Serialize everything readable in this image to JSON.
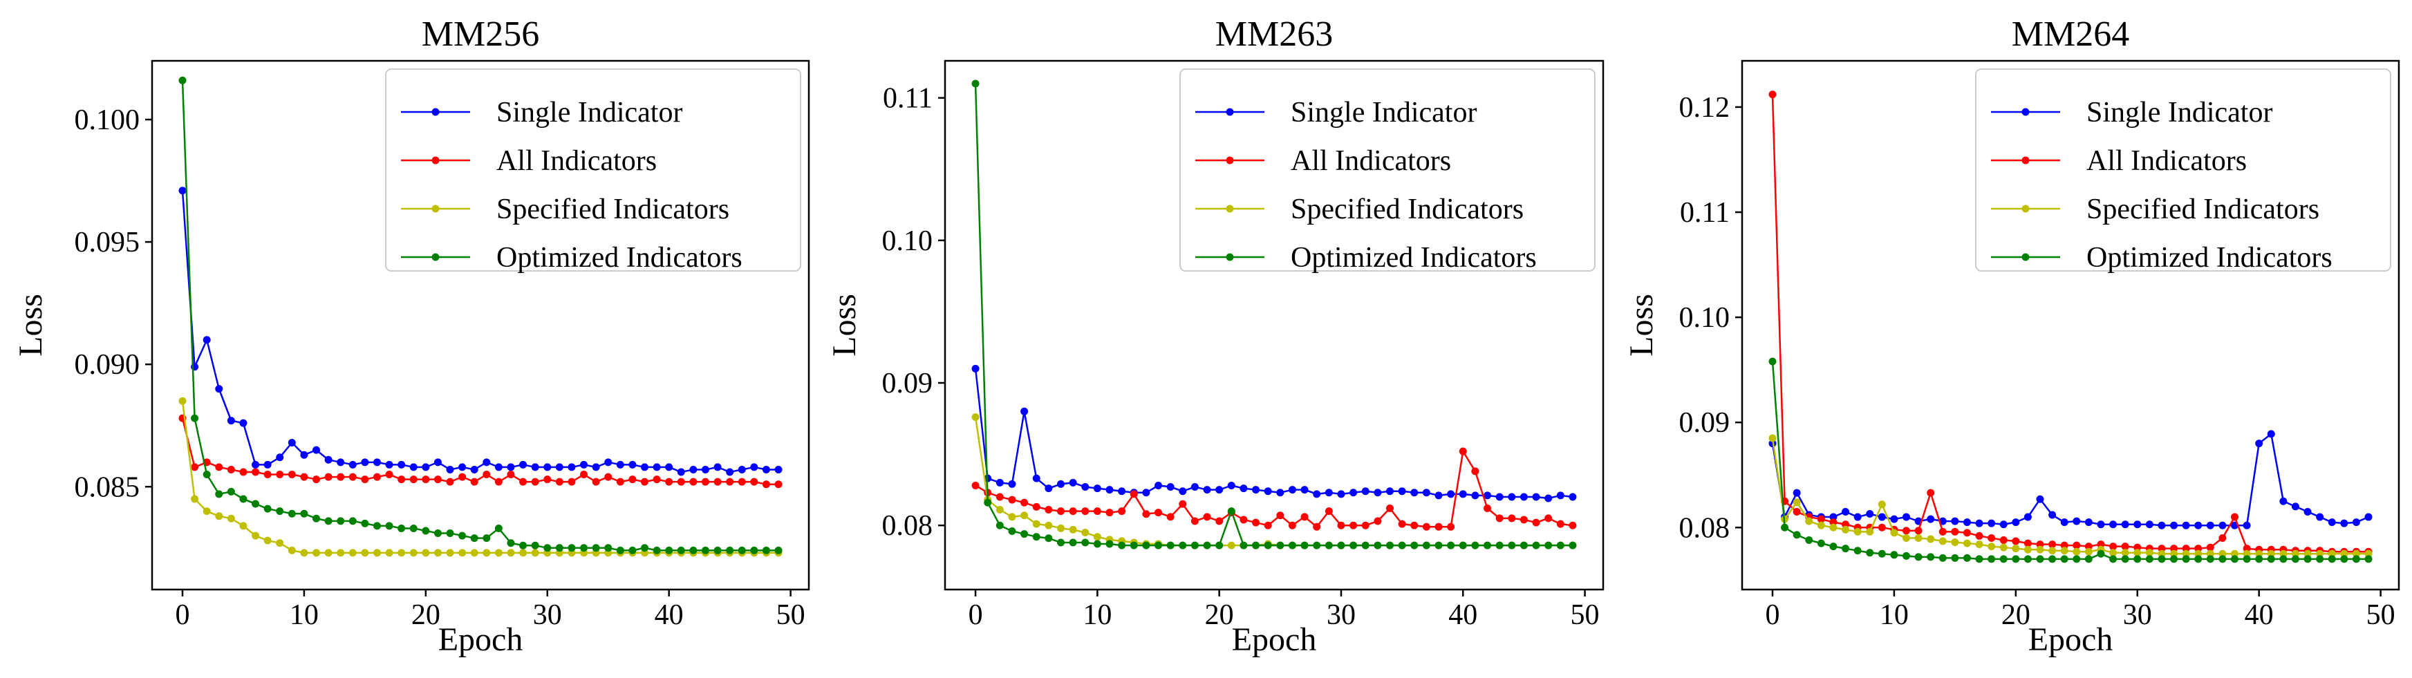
{
  "colors": {
    "single": "#0000ff",
    "all": "#ff0000",
    "specified": "#bfbf00",
    "optimized": "#008000"
  },
  "chart_data": [
    {
      "type": "line",
      "title": "MM256",
      "xlabel": "Epoch",
      "ylabel": "Loss",
      "xlim": [
        -2.5,
        51.5
      ],
      "ylim": [
        0.0808,
        0.1024
      ],
      "xticks": [
        0,
        10,
        20,
        30,
        40,
        50
      ],
      "yticks": [
        0.085,
        0.09,
        0.095,
        0.1
      ],
      "ytick_labels": [
        "0.085",
        "0.090",
        "0.095",
        "0.100"
      ],
      "legend": "top-right",
      "x": [
        0,
        1,
        2,
        3,
        4,
        5,
        6,
        7,
        8,
        9,
        10,
        11,
        12,
        13,
        14,
        15,
        16,
        17,
        18,
        19,
        20,
        21,
        22,
        23,
        24,
        25,
        26,
        27,
        28,
        29,
        30,
        31,
        32,
        33,
        34,
        35,
        36,
        37,
        38,
        39,
        40,
        41,
        42,
        43,
        44,
        45,
        46,
        47,
        48,
        49
      ],
      "series": [
        {
          "name": "Single Indicator",
          "color_key": "single",
          "values": [
            0.0971,
            0.0899,
            0.091,
            0.089,
            0.0877,
            0.0876,
            0.0859,
            0.0859,
            0.0862,
            0.0868,
            0.0863,
            0.0865,
            0.0861,
            0.086,
            0.0859,
            0.086,
            0.086,
            0.0859,
            0.0859,
            0.0858,
            0.0858,
            0.086,
            0.0857,
            0.0858,
            0.0857,
            0.086,
            0.0858,
            0.0858,
            0.0859,
            0.0858,
            0.0858,
            0.0858,
            0.0858,
            0.0859,
            0.0858,
            0.086,
            0.0859,
            0.0859,
            0.0858,
            0.0858,
            0.0858,
            0.0856,
            0.0857,
            0.0857,
            0.0858,
            0.0856,
            0.0857,
            0.0858,
            0.0857,
            0.0857
          ]
        },
        {
          "name": "All Indicators",
          "color_key": "all",
          "values": [
            0.0878,
            0.0858,
            0.086,
            0.0858,
            0.0857,
            0.0856,
            0.0856,
            0.0855,
            0.0855,
            0.0855,
            0.0854,
            0.0853,
            0.0854,
            0.0854,
            0.0854,
            0.0853,
            0.0854,
            0.0855,
            0.0853,
            0.0853,
            0.0853,
            0.0853,
            0.0852,
            0.0854,
            0.0852,
            0.0855,
            0.0852,
            0.0855,
            0.0852,
            0.0852,
            0.0853,
            0.0852,
            0.0852,
            0.0855,
            0.0852,
            0.0854,
            0.0852,
            0.0853,
            0.0852,
            0.0853,
            0.0852,
            0.0852,
            0.0852,
            0.0852,
            0.0852,
            0.0852,
            0.0852,
            0.0852,
            0.0851,
            0.0851
          ]
        },
        {
          "name": "Specified Indicators",
          "color_key": "specified",
          "values": [
            0.0885,
            0.0845,
            0.084,
            0.0838,
            0.0837,
            0.0834,
            0.083,
            0.0828,
            0.0827,
            0.0824,
            0.0823,
            0.0823,
            0.0823,
            0.0823,
            0.0823,
            0.0823,
            0.0823,
            0.0823,
            0.0823,
            0.0823,
            0.0823,
            0.0823,
            0.0823,
            0.0823,
            0.0823,
            0.0823,
            0.0823,
            0.0823,
            0.0823,
            0.0823,
            0.0823,
            0.0823,
            0.0823,
            0.0823,
            0.0823,
            0.0823,
            0.0823,
            0.0823,
            0.0823,
            0.0823,
            0.0823,
            0.0823,
            0.0823,
            0.0823,
            0.0823,
            0.0823,
            0.0823,
            0.0823,
            0.0823,
            0.0823
          ]
        },
        {
          "name": "Optimized Indicators",
          "color_key": "optimized",
          "values": [
            0.1016,
            0.0878,
            0.0855,
            0.0847,
            0.0848,
            0.0845,
            0.0843,
            0.0841,
            0.084,
            0.0839,
            0.0839,
            0.0837,
            0.0836,
            0.0836,
            0.0836,
            0.0835,
            0.0834,
            0.0834,
            0.0833,
            0.0833,
            0.0832,
            0.0831,
            0.0831,
            0.083,
            0.0829,
            0.0829,
            0.0833,
            0.0827,
            0.0826,
            0.0826,
            0.0825,
            0.0825,
            0.0825,
            0.0825,
            0.0825,
            0.0825,
            0.0824,
            0.0824,
            0.0825,
            0.0824,
            0.0824,
            0.0824,
            0.0824,
            0.0824,
            0.0824,
            0.0824,
            0.0824,
            0.0824,
            0.0824,
            0.0824
          ]
        }
      ]
    },
    {
      "type": "line",
      "title": "MM263",
      "xlabel": "Epoch",
      "ylabel": "Loss",
      "xlim": [
        -2.5,
        51.5
      ],
      "ylim": [
        0.0755,
        0.1126
      ],
      "xticks": [
        0,
        10,
        20,
        30,
        40,
        50
      ],
      "yticks": [
        0.08,
        0.09,
        0.1,
        0.11
      ],
      "ytick_labels": [
        "0.08",
        "0.09",
        "0.10",
        "0.11"
      ],
      "legend": "top-right",
      "x": [
        0,
        1,
        2,
        3,
        4,
        5,
        6,
        7,
        8,
        9,
        10,
        11,
        12,
        13,
        14,
        15,
        16,
        17,
        18,
        19,
        20,
        21,
        22,
        23,
        24,
        25,
        26,
        27,
        28,
        29,
        30,
        31,
        32,
        33,
        34,
        35,
        36,
        37,
        38,
        39,
        40,
        41,
        42,
        43,
        44,
        45,
        46,
        47,
        48,
        49
      ],
      "series": [
        {
          "name": "Single Indicator",
          "color_key": "single",
          "values": [
            0.091,
            0.0833,
            0.083,
            0.0829,
            0.088,
            0.0833,
            0.0826,
            0.0829,
            0.083,
            0.0827,
            0.0826,
            0.0825,
            0.0824,
            0.0823,
            0.0823,
            0.0828,
            0.0827,
            0.0824,
            0.0827,
            0.0825,
            0.0825,
            0.0828,
            0.0826,
            0.0825,
            0.0824,
            0.0823,
            0.0825,
            0.0825,
            0.0822,
            0.0823,
            0.0822,
            0.0823,
            0.0824,
            0.0823,
            0.0824,
            0.0824,
            0.0823,
            0.0823,
            0.0821,
            0.0822,
            0.0822,
            0.0821,
            0.0821,
            0.082,
            0.082,
            0.082,
            0.082,
            0.0819,
            0.0821,
            0.082
          ]
        },
        {
          "name": "All Indicators",
          "color_key": "all",
          "values": [
            0.0828,
            0.0823,
            0.082,
            0.0818,
            0.0816,
            0.0813,
            0.0811,
            0.081,
            0.081,
            0.081,
            0.081,
            0.0809,
            0.081,
            0.0822,
            0.0808,
            0.0809,
            0.0806,
            0.0815,
            0.0803,
            0.0806,
            0.0803,
            0.0809,
            0.0804,
            0.0802,
            0.08,
            0.0807,
            0.08,
            0.0806,
            0.0799,
            0.081,
            0.08,
            0.08,
            0.08,
            0.0803,
            0.0812,
            0.0801,
            0.08,
            0.0799,
            0.0799,
            0.0799,
            0.0852,
            0.0838,
            0.0812,
            0.0805,
            0.0805,
            0.0804,
            0.0802,
            0.0805,
            0.0801,
            0.08
          ]
        },
        {
          "name": "Specified Indicators",
          "color_key": "specified",
          "values": [
            0.0876,
            0.0818,
            0.0811,
            0.0806,
            0.0807,
            0.0801,
            0.08,
            0.0798,
            0.0797,
            0.0795,
            0.0792,
            0.079,
            0.0789,
            0.0788,
            0.0787,
            0.0787,
            0.0786,
            0.0786,
            0.0786,
            0.0786,
            0.0786,
            0.0786,
            0.0786,
            0.0786,
            0.0787,
            0.0786,
            0.0786,
            0.0786,
            0.0786,
            0.0786,
            0.0786,
            0.0786,
            0.0786,
            0.0786,
            0.0786,
            0.0786,
            0.0786,
            0.0786,
            0.0786,
            0.0786,
            0.0786,
            0.0786,
            0.0786,
            0.0786,
            0.0786,
            0.0786,
            0.0786,
            0.0786,
            0.0786,
            0.0786
          ]
        },
        {
          "name": "Optimized Indicators",
          "color_key": "optimized",
          "values": [
            0.111,
            0.0816,
            0.08,
            0.0796,
            0.0794,
            0.0792,
            0.0791,
            0.0788,
            0.0788,
            0.0788,
            0.0787,
            0.0787,
            0.0786,
            0.0786,
            0.0786,
            0.0786,
            0.0786,
            0.0786,
            0.0786,
            0.0786,
            0.0786,
            0.081,
            0.0786,
            0.0786,
            0.0786,
            0.0786,
            0.0786,
            0.0786,
            0.0786,
            0.0786,
            0.0786,
            0.0786,
            0.0786,
            0.0786,
            0.0786,
            0.0786,
            0.0786,
            0.0786,
            0.0786,
            0.0786,
            0.0786,
            0.0786,
            0.0786,
            0.0786,
            0.0786,
            0.0786,
            0.0786,
            0.0786,
            0.0786,
            0.0786
          ]
        }
      ]
    },
    {
      "type": "line",
      "title": "MM264",
      "xlabel": "Epoch",
      "ylabel": "Loss",
      "xlim": [
        -2.5,
        51.5
      ],
      "ylim": [
        0.0741,
        0.1244
      ],
      "xticks": [
        0,
        10,
        20,
        30,
        40,
        50
      ],
      "yticks": [
        0.08,
        0.09,
        0.1,
        0.11,
        0.12
      ],
      "ytick_labels": [
        "0.08",
        "0.09",
        "0.10",
        "0.11",
        "0.12"
      ],
      "legend": "top-right",
      "x": [
        0,
        1,
        2,
        3,
        4,
        5,
        6,
        7,
        8,
        9,
        10,
        11,
        12,
        13,
        14,
        15,
        16,
        17,
        18,
        19,
        20,
        21,
        22,
        23,
        24,
        25,
        26,
        27,
        28,
        29,
        30,
        31,
        32,
        33,
        34,
        35,
        36,
        37,
        38,
        39,
        40,
        41,
        42,
        43,
        44,
        45,
        46,
        47,
        48,
        49
      ],
      "series": [
        {
          "name": "Single Indicator",
          "color_key": "single",
          "values": [
            0.088,
            0.081,
            0.0833,
            0.0812,
            0.081,
            0.081,
            0.0815,
            0.081,
            0.0813,
            0.081,
            0.0808,
            0.081,
            0.0806,
            0.0808,
            0.0806,
            0.0806,
            0.0805,
            0.0804,
            0.0804,
            0.0803,
            0.0805,
            0.081,
            0.0827,
            0.0812,
            0.0805,
            0.0806,
            0.0805,
            0.0803,
            0.0803,
            0.0803,
            0.0803,
            0.0803,
            0.0802,
            0.0802,
            0.0802,
            0.0802,
            0.0802,
            0.0802,
            0.0802,
            0.0802,
            0.088,
            0.0889,
            0.0825,
            0.082,
            0.0815,
            0.081,
            0.0805,
            0.0804,
            0.0805,
            0.081
          ]
        },
        {
          "name": "All Indicators",
          "color_key": "all",
          "values": [
            0.1212,
            0.0825,
            0.0815,
            0.081,
            0.0808,
            0.0805,
            0.0803,
            0.08,
            0.08,
            0.08,
            0.0798,
            0.0797,
            0.0797,
            0.0833,
            0.0796,
            0.0796,
            0.0795,
            0.0792,
            0.079,
            0.0788,
            0.0787,
            0.0785,
            0.0784,
            0.0784,
            0.0783,
            0.0783,
            0.0782,
            0.0784,
            0.0782,
            0.0782,
            0.0781,
            0.078,
            0.078,
            0.078,
            0.078,
            0.078,
            0.0781,
            0.079,
            0.081,
            0.078,
            0.0779,
            0.0779,
            0.0779,
            0.0778,
            0.0778,
            0.0778,
            0.0777,
            0.0777,
            0.0777,
            0.0777
          ]
        },
        {
          "name": "Specified Indicators",
          "color_key": "specified",
          "values": [
            0.0885,
            0.0808,
            0.0824,
            0.0806,
            0.0802,
            0.08,
            0.0798,
            0.0796,
            0.0796,
            0.0822,
            0.0795,
            0.079,
            0.079,
            0.0789,
            0.0787,
            0.0786,
            0.0785,
            0.0784,
            0.0782,
            0.0781,
            0.078,
            0.0779,
            0.0779,
            0.0778,
            0.0778,
            0.0777,
            0.0777,
            0.0779,
            0.0776,
            0.0776,
            0.0776,
            0.0776,
            0.0775,
            0.0775,
            0.0775,
            0.0775,
            0.0775,
            0.0775,
            0.0775,
            0.0775,
            0.0775,
            0.0775,
            0.0775,
            0.0775,
            0.0775,
            0.0775,
            0.0775,
            0.0775,
            0.0775,
            0.0775
          ]
        },
        {
          "name": "Optimized Indicators",
          "color_key": "optimized",
          "values": [
            0.0958,
            0.08,
            0.0793,
            0.0788,
            0.0785,
            0.0782,
            0.078,
            0.0778,
            0.0776,
            0.0775,
            0.0774,
            0.0773,
            0.0772,
            0.0772,
            0.0771,
            0.0771,
            0.0771,
            0.077,
            0.077,
            0.077,
            0.077,
            0.077,
            0.077,
            0.077,
            0.077,
            0.077,
            0.077,
            0.0775,
            0.077,
            0.077,
            0.077,
            0.077,
            0.077,
            0.077,
            0.077,
            0.077,
            0.077,
            0.077,
            0.077,
            0.077,
            0.077,
            0.077,
            0.077,
            0.077,
            0.077,
            0.077,
            0.077,
            0.077,
            0.077,
            0.077
          ]
        }
      ]
    }
  ]
}
